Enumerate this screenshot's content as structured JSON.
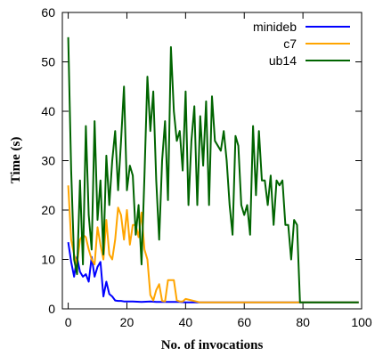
{
  "chart_data": {
    "type": "line",
    "xlabel": "No. of invocations",
    "ylabel": "Time (s)",
    "xlim": [
      -2,
      100
    ],
    "ylim": [
      0,
      60
    ],
    "x_ticks": [
      "0",
      "20",
      "40",
      "60",
      "80",
      "100"
    ],
    "y_ticks": [
      "0",
      "10",
      "20",
      "30",
      "40",
      "50",
      "60"
    ],
    "legend_position": "top-right",
    "grid": false,
    "series": [
      {
        "name": "minideb",
        "color": "#0000ff",
        "x": [
          0,
          1,
          2,
          3,
          4,
          5,
          6,
          7,
          8,
          9,
          10,
          11,
          12,
          13,
          14,
          15,
          16,
          17,
          18,
          19,
          20,
          22,
          25,
          28,
          30,
          32,
          35,
          38,
          40,
          45,
          50,
          55,
          60,
          65,
          70,
          75,
          80,
          85,
          90,
          95,
          99
        ],
        "values": [
          13.5,
          9.5,
          6.5,
          10.5,
          7.5,
          6.5,
          7.0,
          5.5,
          10.5,
          6.5,
          8.5,
          9.5,
          2.5,
          5.5,
          3.0,
          2.5,
          1.7,
          1.6,
          1.6,
          1.5,
          1.5,
          1.5,
          1.4,
          1.5,
          1.4,
          1.4,
          1.4,
          1.4,
          1.3,
          1.3,
          1.3,
          1.3,
          1.3,
          1.3,
          1.3,
          1.3,
          1.3,
          1.3,
          1.3,
          1.3,
          1.3
        ]
      },
      {
        "name": "c7",
        "color": "#ffa500",
        "x": [
          0,
          1,
          2,
          3,
          4,
          5,
          6,
          7,
          8,
          9,
          10,
          11,
          12,
          13,
          14,
          15,
          16,
          17,
          18,
          19,
          20,
          21,
          22,
          23,
          24,
          25,
          26,
          27,
          28,
          29,
          30,
          31,
          32,
          33,
          34,
          35,
          36,
          37,
          38,
          39,
          40,
          45,
          50,
          55,
          60,
          65,
          70,
          75,
          80,
          85,
          90,
          95,
          99
        ],
        "values": [
          25,
          14,
          11,
          9,
          14,
          15,
          14.5,
          12,
          10,
          9,
          16.5,
          13,
          10,
          18,
          11,
          10,
          14,
          20.5,
          19,
          14,
          20,
          13,
          17,
          17,
          14.5,
          19.5,
          12,
          10,
          2.8,
          1.7,
          3.8,
          5.0,
          1.6,
          1.5,
          5.8,
          5.8,
          5.8,
          1.7,
          1.5,
          1.5,
          2.0,
          1.3,
          1.3,
          1.3,
          1.3,
          1.3,
          1.3,
          1.3,
          1.3,
          1.3,
          1.3,
          1.3,
          1.3
        ]
      },
      {
        "name": "ub14",
        "color": "#006400",
        "x": [
          0,
          1,
          2,
          3,
          4,
          5,
          6,
          7,
          8,
          9,
          10,
          11,
          12,
          13,
          14,
          15,
          16,
          17,
          18,
          19,
          20,
          21,
          22,
          23,
          24,
          25,
          26,
          27,
          28,
          29,
          30,
          31,
          32,
          33,
          34,
          35,
          36,
          37,
          38,
          39,
          40,
          41,
          42,
          43,
          44,
          45,
          46,
          47,
          48,
          49,
          50,
          51,
          52,
          53,
          54,
          55,
          56,
          57,
          58,
          59,
          60,
          61,
          62,
          63,
          64,
          65,
          66,
          67,
          68,
          69,
          70,
          71,
          72,
          73,
          74,
          75,
          76,
          77,
          78,
          79,
          80,
          85,
          90,
          95,
          99
        ],
        "values": [
          55,
          28,
          10,
          7,
          26,
          9,
          37,
          19,
          12,
          38,
          18,
          26,
          11,
          31,
          21,
          30,
          36,
          24,
          34,
          45,
          24,
          29,
          27,
          15,
          21,
          9,
          27,
          47,
          36,
          44,
          26,
          14,
          30,
          38,
          22,
          53,
          40,
          34,
          36,
          28,
          44,
          21,
          34,
          41,
          21,
          39,
          29,
          42,
          21,
          43,
          34,
          33,
          32,
          36,
          30,
          21,
          15,
          35,
          33,
          21,
          19,
          21,
          15,
          37,
          23,
          36,
          26,
          26,
          21,
          27,
          17,
          26,
          25,
          26,
          17,
          17,
          10,
          18,
          17,
          1.3,
          1.3,
          1.3,
          1.3,
          1.3,
          1.3
        ]
      }
    ]
  }
}
